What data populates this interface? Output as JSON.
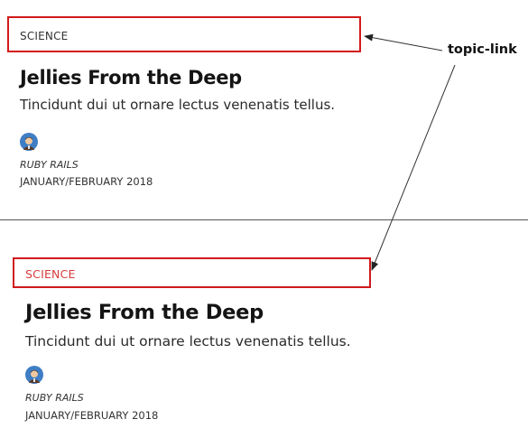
{
  "cards": [
    {
      "topic": "SCIENCE",
      "title": "Jellies From the Deep",
      "subtitle": "Tincidunt dui ut ornare lectus venenatis tellus.",
      "author": "RUBY RAILS",
      "date": "JANUARY/FEBRUARY 2018",
      "topic_color": "#333333"
    },
    {
      "topic": "SCIENCE",
      "title": "Jellies From the Deep",
      "subtitle": "Tincidunt dui ut ornare lectus venenatis tellus.",
      "author": "RUBY RAILS",
      "date": "JANUARY/FEBRUARY 2018",
      "topic_color": "#d63b3b"
    }
  ],
  "annotation": {
    "label": "topic-link",
    "highlight_color": "#d11a1a"
  }
}
